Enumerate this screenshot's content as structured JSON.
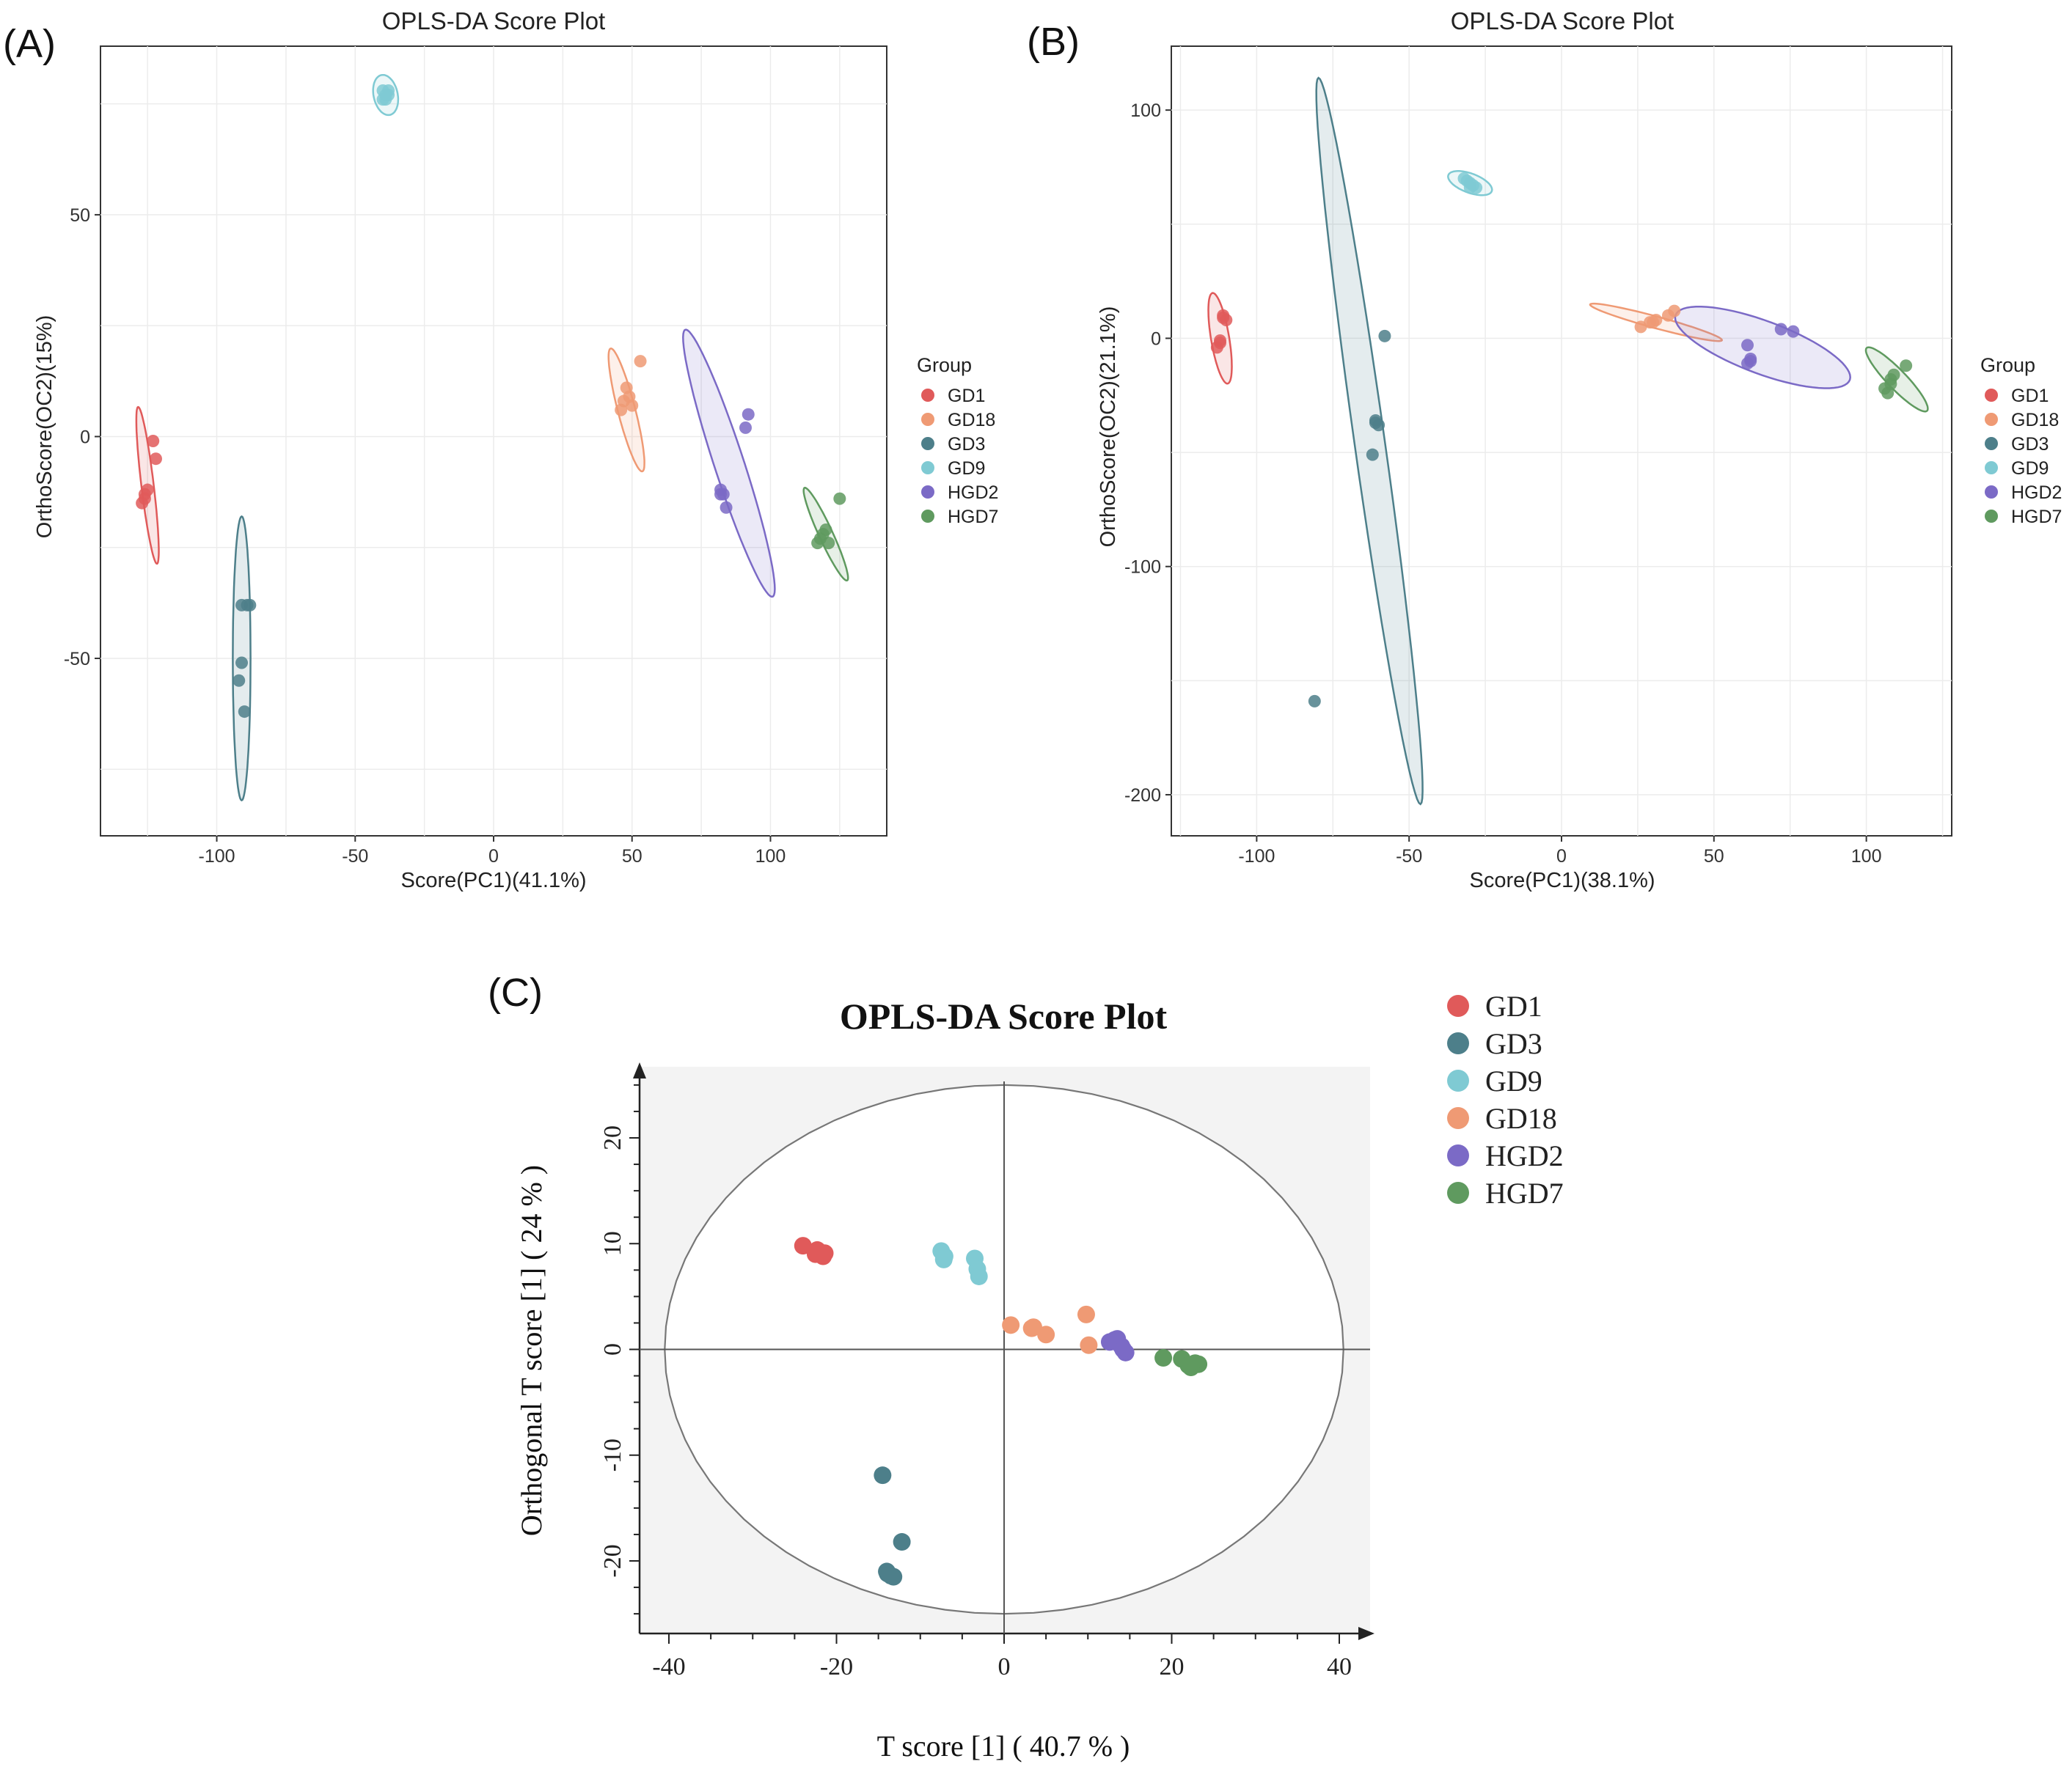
{
  "panels": {
    "a": "(A)",
    "b": "(B)",
    "c": "(C)"
  },
  "group_colors": {
    "GD1": "#e05a5a",
    "GD18": "#ef9a74",
    "GD3": "#4d7f8a",
    "GD9": "#7fcad3",
    "HGD2": "#7b6ac6",
    "HGD7": "#5f9a5f"
  },
  "chart_data": [
    {
      "id": "A",
      "type": "scatter",
      "title": "OPLS-DA Score Plot",
      "xlabel": "Score(PC1)(41.1%)",
      "ylabel": "OrthoScore(OC2)(15%)",
      "xlim": [
        -142,
        142
      ],
      "ylim": [
        -90,
        88
      ],
      "xticks": [
        -100,
        -50,
        0,
        50,
        100
      ],
      "yticks": [
        -50,
        0,
        50
      ],
      "legend_title": "Group",
      "legend": [
        "GD1",
        "GD18",
        "GD3",
        "GD9",
        "HGD2",
        "HGD7"
      ],
      "series": [
        {
          "name": "GD1",
          "points": [
            [
              -123,
              -1
            ],
            [
              -122,
              -5
            ],
            [
              -126,
              -13
            ],
            [
              -125,
              -12
            ],
            [
              -127,
              -15
            ],
            [
              -126,
              -14
            ]
          ],
          "ellipse": {
            "cx": -125,
            "cy": -11,
            "rx": 18,
            "ry": 2.2,
            "angle": -79
          }
        },
        {
          "name": "GD18",
          "points": [
            [
              53,
              17
            ],
            [
              48,
              11
            ],
            [
              49,
              9
            ],
            [
              46,
              6
            ],
            [
              50,
              7
            ],
            [
              47,
              8
            ]
          ],
          "ellipse": {
            "cx": 48,
            "cy": 6,
            "rx": 15,
            "ry": 3,
            "angle": -67
          }
        },
        {
          "name": "GD3",
          "points": [
            [
              -91,
              -38
            ],
            [
              -88,
              -38
            ],
            [
              -91,
              -51
            ],
            [
              -92,
              -55
            ],
            [
              -90,
              -62
            ],
            [
              -89,
              -38
            ]
          ],
          "ellipse": {
            "cx": -91,
            "cy": -50,
            "rx": 32,
            "ry": 3.2,
            "angle": -90
          }
        },
        {
          "name": "GD9",
          "points": [
            [
              -40,
              78
            ],
            [
              -38,
              77
            ],
            [
              -39,
              76
            ],
            [
              -40,
              76
            ],
            [
              -38,
              78
            ],
            [
              -39,
              77
            ]
          ],
          "ellipse": {
            "cx": -39,
            "cy": 77,
            "rx": 5,
            "ry": 4,
            "angle": -45
          }
        },
        {
          "name": "HGD2",
          "points": [
            [
              92,
              5
            ],
            [
              91,
              2
            ],
            [
              82,
              -12
            ],
            [
              83,
              -13
            ],
            [
              84,
              -16
            ],
            [
              82,
              -13
            ]
          ],
          "ellipse": {
            "cx": 85,
            "cy": -6,
            "rx": 34,
            "ry": 5,
            "angle": -62
          }
        },
        {
          "name": "HGD7",
          "points": [
            [
              125,
              -14
            ],
            [
              120,
              -21
            ],
            [
              118,
              -23
            ],
            [
              117,
              -24
            ],
            [
              121,
              -24
            ],
            [
              119,
              -22
            ]
          ],
          "ellipse": {
            "cx": 120,
            "cy": -22,
            "rx": 13,
            "ry": 2.2,
            "angle": -53
          }
        }
      ]
    },
    {
      "id": "B",
      "type": "scatter",
      "title": "OPLS-DA Score Plot",
      "xlabel": "Score(PC1)(38.1%)",
      "ylabel": "OrthoScore(OC2)(21.1%)",
      "xlim": [
        -128,
        128
      ],
      "ylim": [
        -218,
        128
      ],
      "xticks": [
        -100,
        -50,
        0,
        50,
        100
      ],
      "yticks": [
        -200,
        -100,
        0,
        100
      ],
      "legend_title": "Group",
      "legend": [
        "GD1",
        "GD18",
        "GD3",
        "GD9",
        "HGD2",
        "HGD7"
      ],
      "series": [
        {
          "name": "GD1",
          "points": [
            [
              -111,
              10
            ],
            [
              -110,
              8
            ],
            [
              -112,
              -2
            ],
            [
              -113,
              -4
            ],
            [
              -111,
              9
            ],
            [
              -112,
              -1
            ]
          ],
          "ellipse": {
            "cx": -112,
            "cy": 0,
            "rx": 20,
            "ry": 3,
            "angle": -83
          }
        },
        {
          "name": "GD18",
          "points": [
            [
              26,
              5
            ],
            [
              29,
              7
            ],
            [
              31,
              8
            ],
            [
              37,
              12
            ],
            [
              35,
              10
            ],
            [
              30,
              7
            ]
          ],
          "ellipse": {
            "cx": 31,
            "cy": 7,
            "rx": 23,
            "ry": 2.5,
            "angle": -20
          }
        },
        {
          "name": "GD3",
          "points": [
            [
              -58,
              1
            ],
            [
              -61,
              -37
            ],
            [
              -60,
              -38
            ],
            [
              -62,
              -51
            ],
            [
              -81,
              -159
            ],
            [
              -61,
              -36
            ]
          ],
          "ellipse": {
            "cx": -63,
            "cy": -45,
            "rx": 160,
            "ry": 5,
            "angle": -84
          }
        },
        {
          "name": "GD9",
          "points": [
            [
              -32,
              70
            ],
            [
              -30,
              68
            ],
            [
              -28,
              66
            ],
            [
              -29,
              67
            ],
            [
              -31,
              69
            ],
            [
              -30,
              66
            ]
          ],
          "ellipse": {
            "cx": -30,
            "cy": 68,
            "rx": 8,
            "ry": 4,
            "angle": -30
          }
        },
        {
          "name": "HGD2",
          "points": [
            [
              61,
              -3
            ],
            [
              62,
              -10
            ],
            [
              61,
              -11
            ],
            [
              72,
              4
            ],
            [
              76,
              3
            ],
            [
              62,
              -9
            ]
          ],
          "ellipse": {
            "cx": 66,
            "cy": -4,
            "rx": 32,
            "ry": 11,
            "angle": -28
          }
        },
        {
          "name": "HGD7",
          "points": [
            [
              113,
              -12
            ],
            [
              108,
              -18
            ],
            [
              109,
              -16
            ],
            [
              106,
              -22
            ],
            [
              107,
              -24
            ],
            [
              108,
              -20
            ]
          ],
          "ellipse": {
            "cx": 110,
            "cy": -18,
            "rx": 17,
            "ry": 3.5,
            "angle": -55
          }
        }
      ]
    },
    {
      "id": "C",
      "type": "scatter",
      "title": "OPLS-DA Score Plot",
      "xlabel": "T score [1] ( 40.7 % )",
      "ylabel": "Orthogonal T score [1] ( 24 % )",
      "xlim": [
        -44,
        44
      ],
      "ylim": [
        -27,
        27
      ],
      "xticks": [
        -40,
        -20,
        0,
        20,
        40
      ],
      "yticks": [
        -20,
        -10,
        0,
        10,
        20
      ],
      "legend": [
        "GD1",
        "GD3",
        "GD9",
        "GD18",
        "HGD2",
        "HGD7"
      ],
      "ellipse": {
        "cx": 0,
        "cy": 0,
        "rx": 40.5,
        "ry": 25
      },
      "series": [
        {
          "name": "GD1",
          "points": [
            [
              -24,
              9.8
            ],
            [
              -22.3,
              9.4
            ],
            [
              -22,
              9.2
            ],
            [
              -21.6,
              8.8
            ],
            [
              -22.5,
              9.0
            ],
            [
              -21.4,
              9.1
            ]
          ]
        },
        {
          "name": "GD3",
          "points": [
            [
              -14.5,
              -11.9
            ],
            [
              -12.2,
              -18.2
            ],
            [
              -14,
              -21
            ],
            [
              -13.5,
              -21.4
            ],
            [
              -13.9,
              -21.2
            ],
            [
              -13.2,
              -21.5
            ]
          ]
        },
        {
          "name": "GD9",
          "points": [
            [
              -7.5,
              9.3
            ],
            [
              -7.2,
              8.5
            ],
            [
              -3.5,
              8.6
            ],
            [
              -3.2,
              7.6
            ],
            [
              -3.0,
              6.9
            ],
            [
              -7.1,
              8.8
            ]
          ]
        },
        {
          "name": "GD18",
          "points": [
            [
              0.8,
              2.3
            ],
            [
              3.3,
              2.0
            ],
            [
              5.0,
              1.4
            ],
            [
              9.8,
              3.3
            ],
            [
              10.1,
              0.4
            ],
            [
              3.5,
              2.1
            ]
          ]
        },
        {
          "name": "HGD2",
          "points": [
            [
              12.6,
              0.7
            ],
            [
              13.5,
              1.0
            ],
            [
              14.0,
              0.3
            ],
            [
              14.5,
              -0.3
            ],
            [
              13.2,
              0.9
            ],
            [
              14.2,
              0.0
            ]
          ]
        },
        {
          "name": "HGD7",
          "points": [
            [
              19,
              -0.8
            ],
            [
              21.2,
              -0.9
            ],
            [
              22,
              -1.5
            ],
            [
              22.8,
              -1.3
            ],
            [
              23.2,
              -1.4
            ],
            [
              22.3,
              -1.7
            ]
          ]
        }
      ]
    }
  ]
}
